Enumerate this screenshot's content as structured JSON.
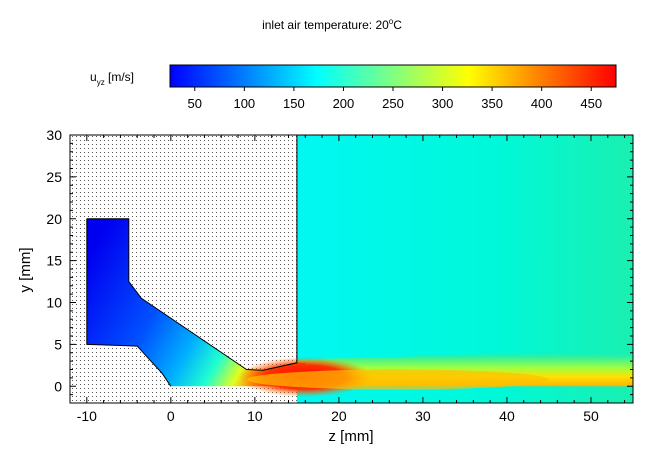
{
  "chart_data": {
    "type": "heatmap",
    "title": "inlet air temperature: 20°C",
    "title_main": "inlet air temperature: 20",
    "title_sup": "o",
    "title_end": "C",
    "colorbar": {
      "label_main": "u",
      "label_sub": "yz",
      "label_unit": " [m/s]",
      "ticks": [
        50,
        100,
        150,
        200,
        250,
        300,
        350,
        400,
        450
      ],
      "range": [
        25,
        475
      ],
      "colormap": [
        "#0000ff",
        "#0080ff",
        "#00ffff",
        "#80ff80",
        "#ffff00",
        "#ff8000",
        "#ff0000"
      ]
    },
    "xlabel": "z [mm]",
    "ylabel": "y [mm]",
    "xlim": [
      -12,
      55
    ],
    "ylim": [
      -2,
      30
    ],
    "xticks": [
      -10,
      0,
      10,
      20,
      30,
      40,
      50
    ],
    "yticks": [
      0,
      5,
      10,
      15,
      20,
      25,
      30
    ],
    "grid": true,
    "nozzle_geometry": {
      "outline_z": [
        -10,
        -5,
        -5,
        -3.5,
        9,
        11,
        15,
        15,
        55,
        55,
        0,
        -1,
        -4,
        -10
      ],
      "outline_y": [
        20,
        20,
        12.5,
        10.5,
        2,
        1.9,
        2.8,
        30,
        30,
        0,
        0,
        1.5,
        4.8,
        5
      ]
    },
    "field_samples": [
      {
        "region": "inlet chamber",
        "z": -8,
        "y": 15,
        "u": 40
      },
      {
        "region": "converging channel",
        "z": 4,
        "y": 4,
        "u": 110
      },
      {
        "region": "throat",
        "z": 9,
        "y": 1,
        "u": 320
      },
      {
        "region": "jet core",
        "z": 15,
        "y": 1,
        "u": 455
      },
      {
        "region": "jet downstream",
        "z": 30,
        "y": 1,
        "u": 370
      },
      {
        "region": "jet end",
        "z": 52,
        "y": 1,
        "u": 330
      },
      {
        "region": "jet shear layer",
        "z": 40,
        "y": 3,
        "u": 200
      },
      {
        "region": "ambient",
        "z": 35,
        "y": 20,
        "u": 150
      }
    ]
  }
}
